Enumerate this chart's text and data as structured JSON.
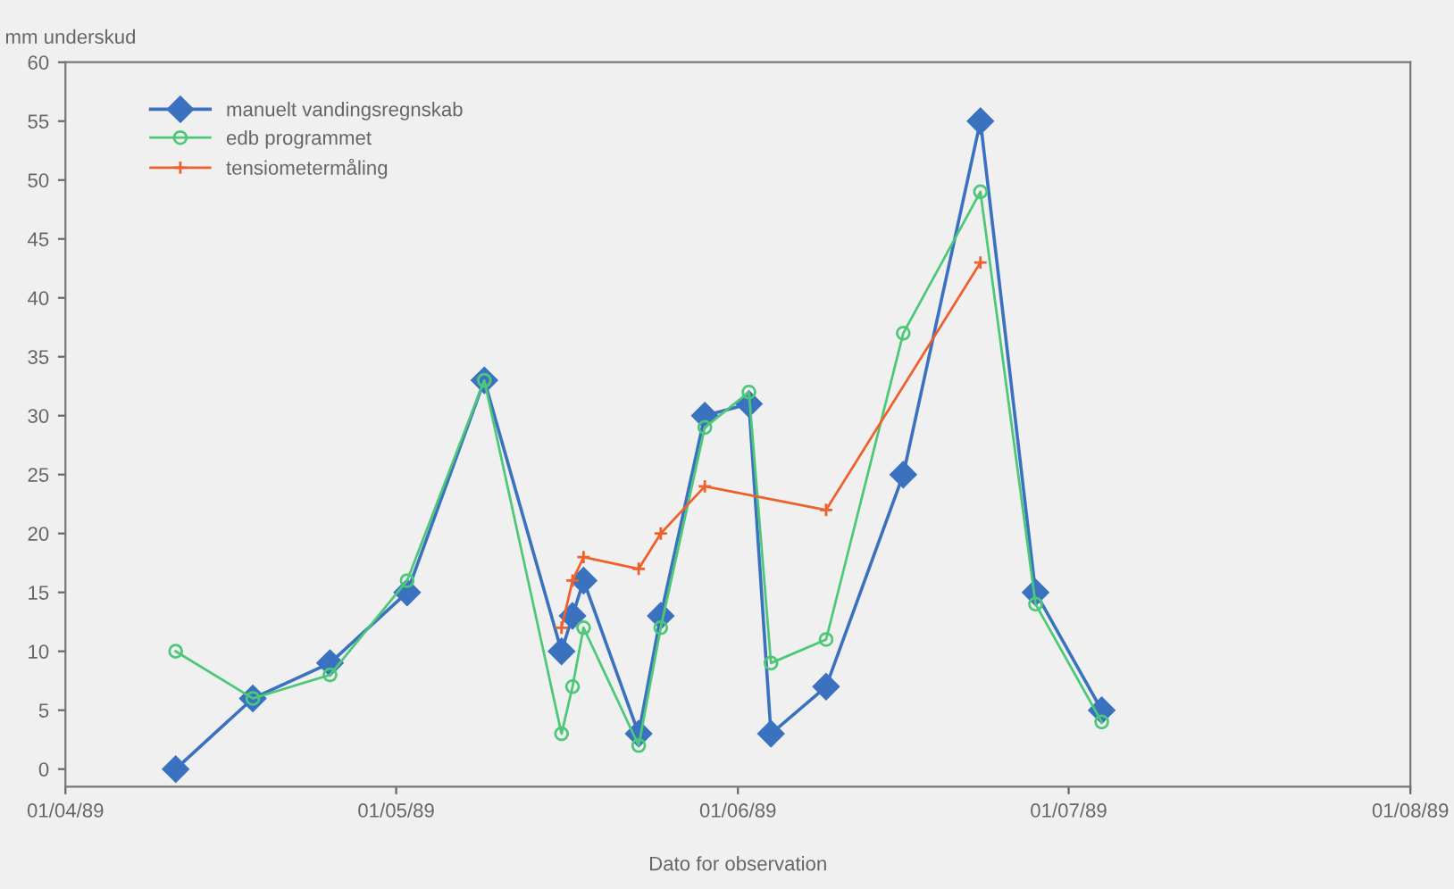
{
  "chart_data": {
    "type": "line",
    "ylabel": "mm underskud",
    "xlabel": "Dato for observation",
    "xlim": [
      "1989-04-01",
      "1989-08-01"
    ],
    "xticks": [
      {
        "value": "1989-04-01",
        "label": "01/04/89"
      },
      {
        "value": "1989-05-01",
        "label": "01/05/89"
      },
      {
        "value": "1989-06-01",
        "label": "01/06/89"
      },
      {
        "value": "1989-07-01",
        "label": "01/07/89"
      },
      {
        "value": "1989-08-01",
        "label": "01/08/89"
      }
    ],
    "ylim": [
      -1.5,
      60
    ],
    "yticks": [
      0,
      5,
      10,
      15,
      20,
      25,
      30,
      35,
      40,
      45,
      50,
      55,
      60
    ],
    "grid": false,
    "legend": "top left",
    "series": [
      {
        "name": "manuelt vandingsregnskab",
        "color": "#3a72c0",
        "marker": "diamond",
        "x": [
          "1989-04-11",
          "1989-04-18",
          "1989-04-25",
          "1989-05-02",
          "1989-05-09",
          "1989-05-16",
          "1989-05-17",
          "1989-05-18",
          "1989-05-23",
          "1989-05-25",
          "1989-05-29",
          "1989-06-02",
          "1989-06-04",
          "1989-06-09",
          "1989-06-16",
          "1989-06-23",
          "1989-06-28",
          "1989-07-04"
        ],
        "values": [
          0,
          6,
          9,
          15,
          33,
          10,
          13,
          16,
          3,
          13,
          30,
          31,
          3,
          7,
          25,
          55,
          15,
          5
        ]
      },
      {
        "name": "edb programmet",
        "color": "#4cc878",
        "marker": "circle",
        "x": [
          "1989-04-11",
          "1989-04-18",
          "1989-04-25",
          "1989-05-02",
          "1989-05-09",
          "1989-05-16",
          "1989-05-17",
          "1989-05-18",
          "1989-05-23",
          "1989-05-25",
          "1989-05-29",
          "1989-06-02",
          "1989-06-04",
          "1989-06-09",
          "1989-06-16",
          "1989-06-23",
          "1989-06-28",
          "1989-07-04"
        ],
        "values": [
          10,
          6,
          8,
          16,
          33,
          3,
          7,
          12,
          2,
          12,
          29,
          32,
          9,
          11,
          37,
          49,
          14,
          4
        ]
      },
      {
        "name": "tensiometermåling",
        "color": "#f0602c",
        "marker": "cross",
        "x": [
          "1989-05-16",
          "1989-05-17",
          "1989-05-18",
          "1989-05-23",
          "1989-05-25",
          "1989-05-29",
          "1989-06-09",
          "1989-06-23"
        ],
        "values": [
          12,
          16,
          18,
          17,
          20,
          24,
          22,
          43
        ]
      }
    ]
  }
}
